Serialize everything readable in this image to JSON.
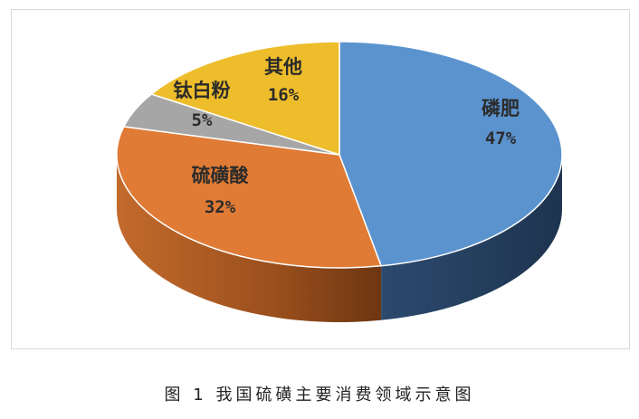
{
  "caption": "图 1 我国硫磺主要消费领域示意图",
  "chart_data": {
    "type": "pie",
    "three_d": true,
    "title": "",
    "legend": "none",
    "slices": [
      {
        "label": "磷肥",
        "value": 47,
        "value_text": "47%",
        "color": "#5b93cf"
      },
      {
        "label": "硫磺酸",
        "value": 32,
        "value_text": "32%",
        "color": "#e07b35"
      },
      {
        "label": "钛白粉",
        "value": 5,
        "value_text": "5%",
        "color": "#a6a6a6"
      },
      {
        "label": "其他",
        "value": 16,
        "value_text": "16%",
        "color": "#eebd2b"
      }
    ]
  }
}
